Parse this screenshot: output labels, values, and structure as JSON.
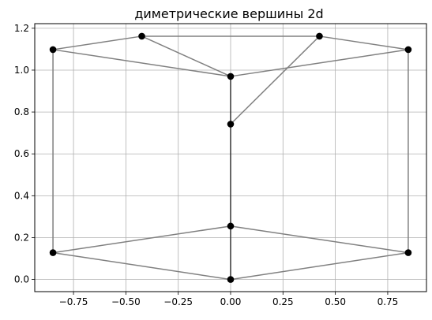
{
  "chart_data": {
    "type": "scatter",
    "title": "диметрические вершины 2d",
    "xlabel": "",
    "ylabel": "",
    "xlim": [
      -0.935,
      0.935
    ],
    "ylim": [
      -0.058,
      1.222
    ],
    "grid": true,
    "x_ticks": [
      -0.75,
      -0.5,
      -0.25,
      0.0,
      0.25,
      0.5,
      0.75
    ],
    "x_tick_labels": [
      "−0.75",
      "−0.50",
      "−0.25",
      "0.00",
      "0.25",
      "0.50",
      "0.75"
    ],
    "y_ticks": [
      0.0,
      0.2,
      0.4,
      0.6,
      0.8,
      1.0,
      1.2
    ],
    "y_tick_labels": [
      "0.0",
      "0.2",
      "0.4",
      "0.6",
      "0.8",
      "1.0",
      "1.2"
    ],
    "points": [
      {
        "x": 0.0,
        "y": 0.0
      },
      {
        "x": 0.848,
        "y": 0.128
      },
      {
        "x": 0.0,
        "y": 0.255
      },
      {
        "x": -0.848,
        "y": 0.128
      },
      {
        "x": -0.848,
        "y": 1.098
      },
      {
        "x": -0.424,
        "y": 1.162
      },
      {
        "x": 0.424,
        "y": 1.162
      },
      {
        "x": 0.848,
        "y": 1.098
      },
      {
        "x": 0.0,
        "y": 0.97
      },
      {
        "x": 0.0,
        "y": 0.742
      }
    ],
    "edges": [
      [
        0,
        1
      ],
      [
        1,
        2
      ],
      [
        2,
        3
      ],
      [
        3,
        0
      ],
      [
        3,
        4
      ],
      [
        1,
        7
      ],
      [
        0,
        2
      ],
      [
        2,
        9
      ],
      [
        4,
        5
      ],
      [
        5,
        6
      ],
      [
        6,
        7
      ],
      [
        7,
        8
      ],
      [
        8,
        4
      ],
      [
        5,
        8
      ],
      [
        8,
        9
      ],
      [
        6,
        9
      ]
    ],
    "colors": {
      "edge": "#808080",
      "edge_dark": "#333333",
      "marker": "#000000",
      "grid": "#b0b0b0"
    }
  }
}
